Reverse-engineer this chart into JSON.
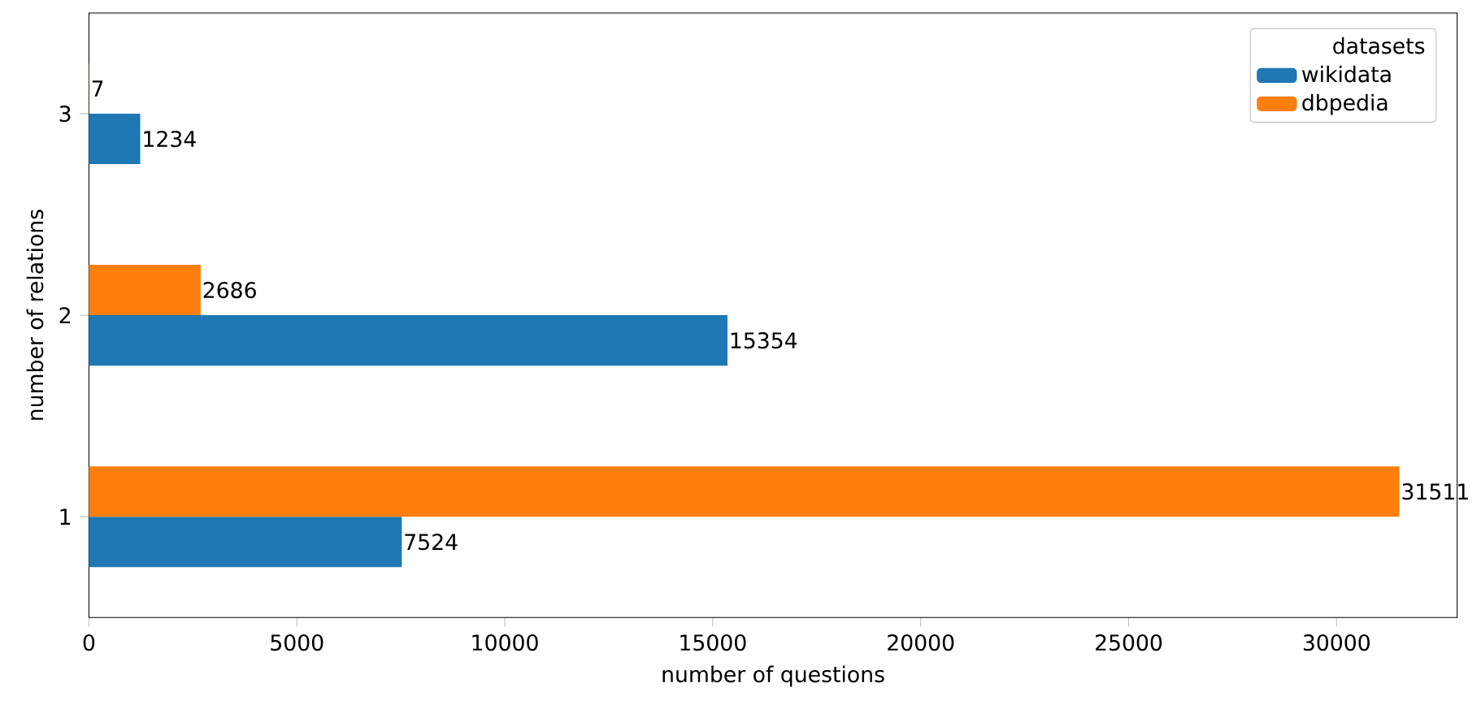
{
  "chart_data": {
    "type": "bar",
    "orientation": "horizontal",
    "xlabel": "number of questions",
    "ylabel": "number of relations",
    "legend_title": "datasets",
    "categories": [
      "3",
      "2",
      "1"
    ],
    "series": [
      {
        "name": "wikidata",
        "color": "#1f77b4",
        "values": [
          1234,
          15354,
          7524
        ]
      },
      {
        "name": "dbpedia",
        "color": "#ff7f0e",
        "values": [
          7,
          2686,
          31511
        ]
      }
    ],
    "xlim": [
      0,
      32900
    ],
    "xticks": [
      0,
      5000,
      10000,
      15000,
      20000,
      25000,
      30000
    ],
    "data_labels": true,
    "legend": "top right"
  }
}
